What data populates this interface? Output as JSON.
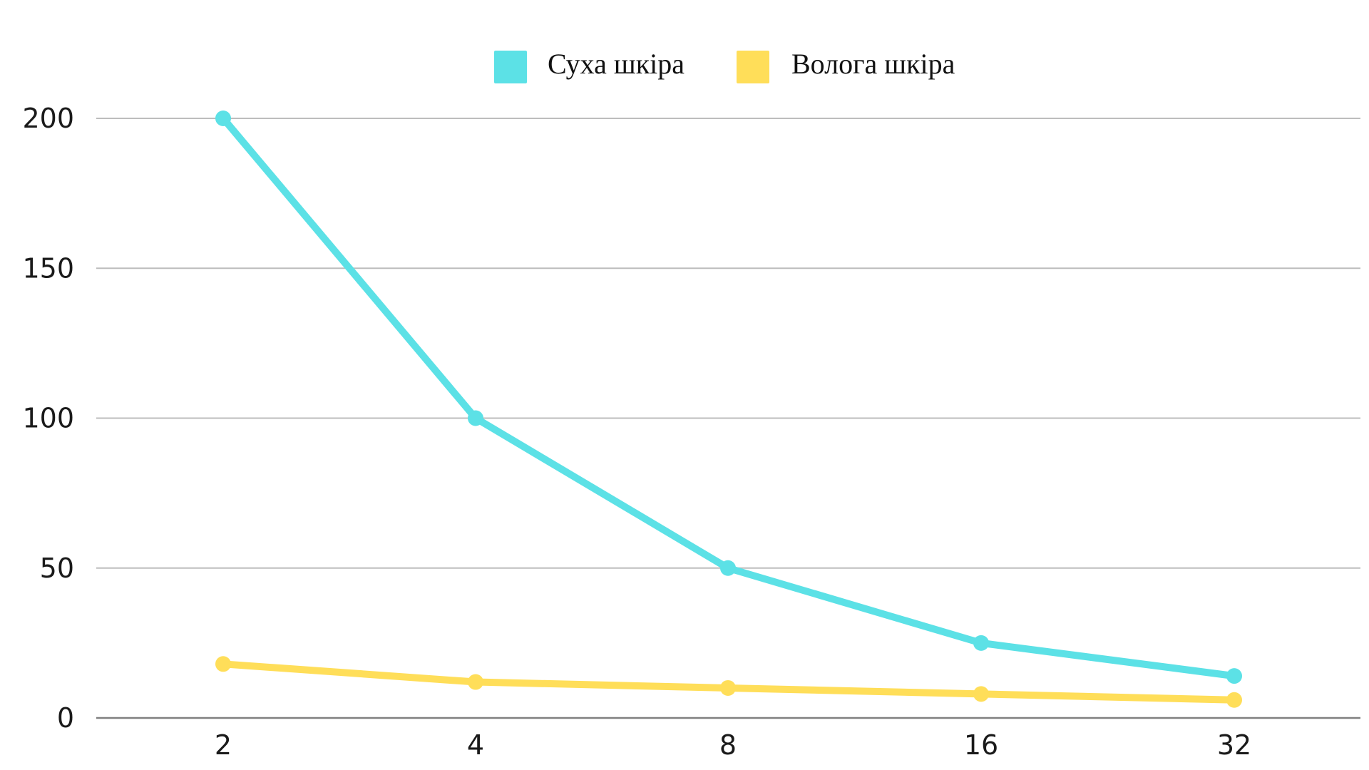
{
  "chart_data": {
    "type": "line",
    "x": [
      2,
      4,
      8,
      16,
      32
    ],
    "x_tick_labels": [
      "2",
      "4",
      "8",
      "16",
      "32"
    ],
    "y_tick_labels": [
      "0",
      "50",
      "100",
      "150",
      "200"
    ],
    "y_ticks": [
      0,
      50,
      100,
      150,
      200
    ],
    "ylim": [
      0,
      200
    ],
    "grid": true,
    "legend_position": "top-center",
    "series": [
      {
        "name": "Суха шкіра",
        "color": "#5ce1e6",
        "values": [
          200,
          100,
          50,
          25,
          14
        ]
      },
      {
        "name": "Волога шкіра",
        "color": "#ffde59",
        "values": [
          18,
          12,
          10,
          8,
          6
        ]
      }
    ]
  }
}
